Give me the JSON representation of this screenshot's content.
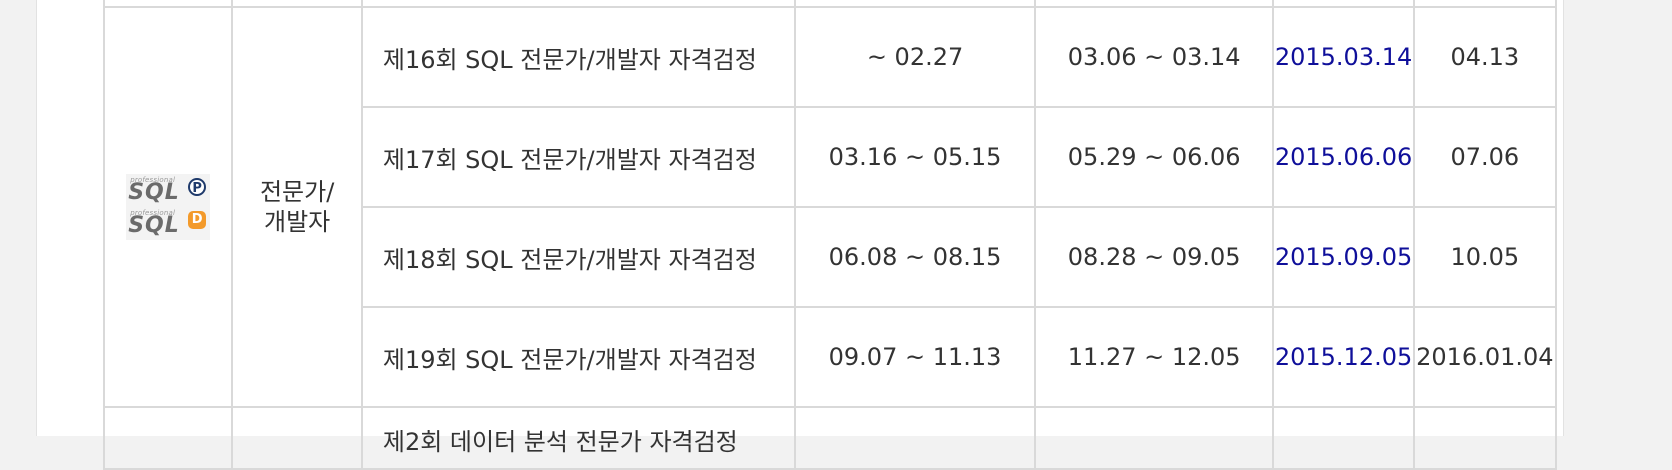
{
  "certification": {
    "logo": {
      "tagline": "professional",
      "word": "SQL",
      "badge_professional": "P",
      "badge_developer": "D"
    },
    "category_line1": "전문가/",
    "category_line2": "개발자"
  },
  "exams": [
    {
      "name": "제16회 SQL 전문가/개발자 자격검정",
      "registration": "~ 02.27",
      "ticket_period": "03.06 ~ 03.14",
      "exam_date": "2015.03.14",
      "result_date": "04.13"
    },
    {
      "name": "제17회 SQL 전문가/개발자 자격검정",
      "registration": "03.16 ~ 05.15",
      "ticket_period": "05.29 ~ 06.06",
      "exam_date": "2015.06.06",
      "result_date": "07.06"
    },
    {
      "name": "제18회 SQL 전문가/개발자 자격검정",
      "registration": "06.08 ~ 08.15",
      "ticket_period": "08.28 ~ 09.05",
      "exam_date": "2015.09.05",
      "result_date": "10.05"
    },
    {
      "name": "제19회 SQL 전문가/개발자 자격검정",
      "registration": "09.07 ~ 11.13",
      "ticket_period": "11.27 ~ 12.05",
      "exam_date": "2015.12.05",
      "result_date": "2016.01.04"
    }
  ],
  "next_section": {
    "partial_exam_name": "제2회 데이터 분석 전문가 자격검정"
  },
  "colors": {
    "exam_date_text": "#0f0f9a",
    "border": "#d9d9d9",
    "text": "#333333"
  }
}
